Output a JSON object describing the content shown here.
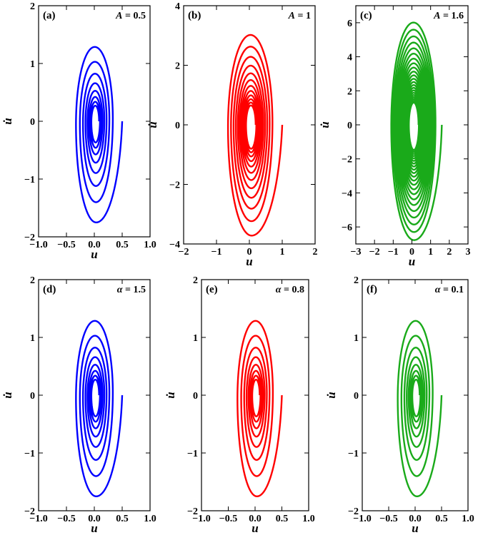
{
  "chart_data": [
    {
      "type": "line",
      "panel_label": "(a)",
      "param_symbol": "A",
      "param_value": "0.5",
      "xlabel": "u",
      "ylabel": "u̇",
      "xlim": [
        -1.0,
        1.0
      ],
      "ylim": [
        -2,
        2
      ],
      "xticks": [
        -1.0,
        -0.5,
        0.0,
        0.5,
        1.0
      ],
      "xtick_labels": [
        "−1.0",
        "−0.5",
        "0.0",
        "0.5",
        "1.0"
      ],
      "yticks": [
        -2,
        -1,
        0,
        1,
        2
      ],
      "ytick_labels": [
        "−2",
        "−1",
        "0",
        "1",
        "2"
      ],
      "color": "#0000ff",
      "trajectory": {
        "start": [
          0.5,
          0.0
        ],
        "center": [
          0.02,
          0.0
        ],
        "x_extent_first_loop": [
          -0.34,
          0.44
        ],
        "y_extent_first_loop": [
          -1.85,
          1.52
        ],
        "turns": 8,
        "decay_per_turn": 0.8
      }
    },
    {
      "type": "line",
      "panel_label": "(b)",
      "param_symbol": "A",
      "param_value": "1",
      "xlabel": "u",
      "ylabel": "u̇",
      "xlim": [
        -2,
        2
      ],
      "ylim": [
        -4,
        4
      ],
      "xticks": [
        -2,
        -1,
        0,
        1,
        2
      ],
      "xtick_labels": [
        "−2",
        "−1",
        "0",
        "1",
        "2"
      ],
      "yticks": [
        -4,
        -2,
        0,
        2,
        4
      ],
      "ytick_labels": [
        "−4",
        "−2",
        "0",
        "2",
        "4"
      ],
      "color": "#ff0000",
      "trajectory": {
        "start": [
          1.0,
          0.0
        ],
        "center": [
          0.05,
          0.0
        ],
        "x_extent_first_loop": [
          -0.65,
          0.85
        ],
        "y_extent_first_loop": [
          -3.85,
          3.35
        ],
        "turns": 12,
        "decay_per_turn": 0.87
      }
    },
    {
      "type": "line",
      "panel_label": "(c)",
      "param_symbol": "A",
      "param_value": "1.6",
      "xlabel": "u",
      "ylabel": "u̇",
      "xlim": [
        -3,
        3
      ],
      "ylim": [
        -7,
        7
      ],
      "xticks": [
        -3,
        -2,
        -1,
        0,
        1,
        2,
        3
      ],
      "xtick_labels": [
        "−3",
        "−2",
        "−1",
        "0",
        "1",
        "2",
        "3"
      ],
      "yticks": [
        -6,
        -4,
        -2,
        0,
        2,
        4,
        6
      ],
      "ytick_labels": [
        "−6",
        "−4",
        "−2",
        "0",
        "2",
        "4",
        "6"
      ],
      "color": "#1aaa1a",
      "trajectory": {
        "start": [
          1.6,
          0.0
        ],
        "center": [
          0.1,
          0.0
        ],
        "x_extent_first_loop": [
          -1.15,
          1.35
        ],
        "y_extent_first_loop": [
          -6.9,
          6.35
        ],
        "turns": 22,
        "decay_per_turn": 0.93
      }
    },
    {
      "type": "line",
      "panel_label": "(d)",
      "param_symbol": "α",
      "param_value": "1.5",
      "xlabel": "u",
      "ylabel": "u̇",
      "xlim": [
        -1.0,
        1.0
      ],
      "ylim": [
        -2,
        2
      ],
      "xticks": [
        -1.0,
        -0.5,
        0.0,
        0.5,
        1.0
      ],
      "xtick_labels": [
        "−1.0",
        "−0.5",
        "0.0",
        "0.5",
        "1.0"
      ],
      "yticks": [
        -2,
        -1,
        0,
        1,
        2
      ],
      "ytick_labels": [
        "−2",
        "−1",
        "0",
        "1",
        "2"
      ],
      "color": "#0000ff",
      "trajectory": {
        "start": [
          0.5,
          0.0
        ],
        "center": [
          0.02,
          0.0
        ],
        "x_extent_first_loop": [
          -0.34,
          0.44
        ],
        "y_extent_first_loop": [
          -1.85,
          1.52
        ],
        "turns": 8,
        "decay_per_turn": 0.8
      }
    },
    {
      "type": "line",
      "panel_label": "(e)",
      "param_symbol": "α",
      "param_value": "0.8",
      "xlabel": "u",
      "ylabel": "u̇",
      "xlim": [
        -1.0,
        1.0
      ],
      "ylim": [
        -2,
        2
      ],
      "xticks": [
        -1.0,
        -0.5,
        0.0,
        0.5,
        1.0
      ],
      "xtick_labels": [
        "−1.0",
        "−0.5",
        "0.0",
        "0.5",
        "1.0"
      ],
      "yticks": [
        -2,
        -1,
        0,
        1,
        2
      ],
      "ytick_labels": [
        "−2",
        "−1",
        "0",
        "1",
        "2"
      ],
      "color": "#ff0000",
      "trajectory": {
        "start": [
          0.5,
          0.0
        ],
        "center": [
          0.02,
          0.0
        ],
        "x_extent_first_loop": [
          -0.34,
          0.44
        ],
        "y_extent_first_loop": [
          -1.85,
          1.52
        ],
        "turns": 8,
        "decay_per_turn": 0.8
      }
    },
    {
      "type": "line",
      "panel_label": "(f)",
      "param_symbol": "α",
      "param_value": "0.1",
      "xlabel": "u",
      "ylabel": "u̇",
      "xlim": [
        -1.0,
        1.0
      ],
      "ylim": [
        -2,
        2
      ],
      "xticks": [
        -1.0,
        -0.5,
        0.0,
        0.5,
        1.0
      ],
      "xtick_labels": [
        "−1.0",
        "−0.5",
        "0.0",
        "0.5",
        "1.0"
      ],
      "yticks": [
        -2,
        -1,
        0,
        1,
        2
      ],
      "ytick_labels": [
        "−2",
        "−1",
        "0",
        "1",
        "2"
      ],
      "color": "#1aaa1a",
      "trajectory": {
        "start": [
          0.5,
          0.0
        ],
        "center": [
          0.02,
          0.0
        ],
        "x_extent_first_loop": [
          -0.34,
          0.44
        ],
        "y_extent_first_loop": [
          -1.85,
          1.52
        ],
        "turns": 8,
        "decay_per_turn": 0.8
      }
    }
  ]
}
